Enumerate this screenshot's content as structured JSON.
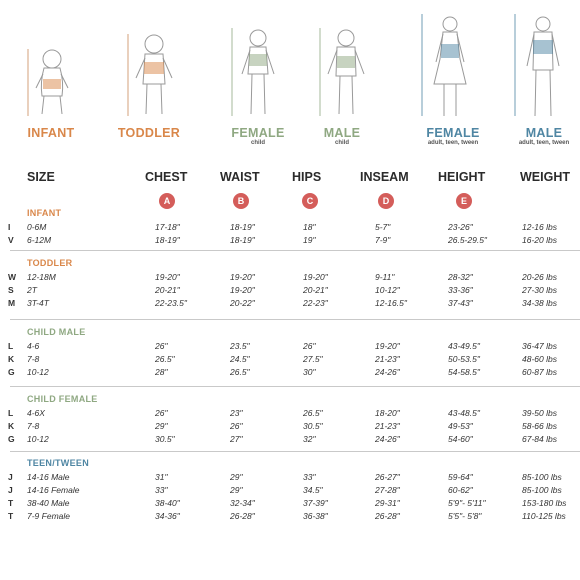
{
  "colors": {
    "infant": "#d9874a",
    "toddler": "#d9874a",
    "child_female": "#8fa882",
    "child_male": "#8fa882",
    "teen": "#4f86a3",
    "badge": "#d45d5a"
  },
  "categories": [
    {
      "label": "INFANT",
      "sub": ""
    },
    {
      "label": "TODDLER",
      "sub": ""
    },
    {
      "label": "FEMALE",
      "sub": "child"
    },
    {
      "label": "MALE",
      "sub": "child"
    },
    {
      "label": "FEMALE",
      "sub": "adult, teen, tween"
    },
    {
      "label": "MALE",
      "sub": "adult, teen, tween"
    }
  ],
  "figure_markers": [
    "A",
    "B",
    "C",
    "D",
    "E"
  ],
  "columns": {
    "size": "SIZE",
    "chest": "CHEST",
    "waist": "WAIST",
    "hips": "HIPS",
    "inseam": "INSEAM",
    "height": "HEIGHT",
    "weight": "WEIGHT"
  },
  "badges": [
    "A",
    "B",
    "C",
    "D",
    "E"
  ],
  "sections": [
    {
      "title": "INFANT",
      "rows": [
        {
          "code": "I",
          "size": "0-6M",
          "chest": "17-18\"",
          "waist": "18-19\"",
          "hips": "18\"",
          "inseam": "5-7\"",
          "height": "23-26\"",
          "weight": "12-16 lbs"
        },
        {
          "code": "V",
          "size": "6-12M",
          "chest": "18-19\"",
          "waist": "18-19\"",
          "hips": "19\"",
          "inseam": "7-9\"",
          "height": "26.5-29.5\"",
          "weight": "16-20 lbs"
        }
      ]
    },
    {
      "title": "TODDLER",
      "rows": [
        {
          "code": "W",
          "size": "12-18M",
          "chest": "19-20\"",
          "waist": "19-20\"",
          "hips": "19-20\"",
          "inseam": "9-11\"",
          "height": "28-32\"",
          "weight": "20-26 lbs"
        },
        {
          "code": "S",
          "size": "2T",
          "chest": "20-21\"",
          "waist": "19-20\"",
          "hips": "20-21\"",
          "inseam": "10-12\"",
          "height": "33-36\"",
          "weight": "27-30 lbs"
        },
        {
          "code": "M",
          "size": "3T-4T",
          "chest": "22-23.5\"",
          "waist": "20-22\"",
          "hips": "22-23\"",
          "inseam": "12-16.5\"",
          "height": "37-43\"",
          "weight": "34-38 lbs"
        }
      ]
    },
    {
      "title": "CHILD MALE",
      "rows": [
        {
          "code": "L",
          "size": "4-6",
          "chest": "26\"",
          "waist": "23.5\"",
          "hips": "26\"",
          "inseam": "19-20\"",
          "height": "43-49.5\"",
          "weight": "36-47 lbs"
        },
        {
          "code": "K",
          "size": "7-8",
          "chest": "26.5\"",
          "waist": "24.5\"",
          "hips": "27.5\"",
          "inseam": "21-23\"",
          "height": "50-53.5\"",
          "weight": "48-60 lbs"
        },
        {
          "code": "G",
          "size": "10-12",
          "chest": "28\"",
          "waist": "26.5\"",
          "hips": "30\"",
          "inseam": "24-26\"",
          "height": "54-58.5\"",
          "weight": "60-87 lbs"
        }
      ]
    },
    {
      "title": "CHILD FEMALE",
      "rows": [
        {
          "code": "L",
          "size": "4-6X",
          "chest": "26\"",
          "waist": "23\"",
          "hips": "26.5\"",
          "inseam": "18-20\"",
          "height": "43-48.5\"",
          "weight": "39-50 lbs"
        },
        {
          "code": "K",
          "size": "7-8",
          "chest": "29\"",
          "waist": "26\"",
          "hips": "30.5\"",
          "inseam": "21-23\"",
          "height": "49-53\"",
          "weight": "58-66 lbs"
        },
        {
          "code": "G",
          "size": "10-12",
          "chest": "30.5\"",
          "waist": "27\"",
          "hips": "32\"",
          "inseam": "24-26\"",
          "height": "54-60\"",
          "weight": "67-84 lbs"
        }
      ]
    },
    {
      "title": "TEEN/TWEEN",
      "rows": [
        {
          "code": "J",
          "size": "14-16 Male",
          "chest": "31\"",
          "waist": "29\"",
          "hips": "33\"",
          "inseam": "26-27\"",
          "height": "59-64\"",
          "weight": "85-100 lbs"
        },
        {
          "code": "J",
          "size": "14-16 Female",
          "chest": "33\"",
          "waist": "29\"",
          "hips": "34.5\"",
          "inseam": "27-28\"",
          "height": "60-62\"",
          "weight": "85-100 lbs"
        },
        {
          "code": "T",
          "size": "38-40 Male",
          "chest": "38-40\"",
          "waist": "32-34\"",
          "hips": "37-39\"",
          "inseam": "29-31\"",
          "height": "5'9\"- 5'11\"",
          "weight": "153-180 lbs"
        },
        {
          "code": "T",
          "size": "7-9 Female",
          "chest": "34-36\"",
          "waist": "26-28\"",
          "hips": "36-38\"",
          "inseam": "26-28\"",
          "height": "5'5\"- 5'8\"",
          "weight": "110-125 lbs"
        }
      ]
    }
  ]
}
